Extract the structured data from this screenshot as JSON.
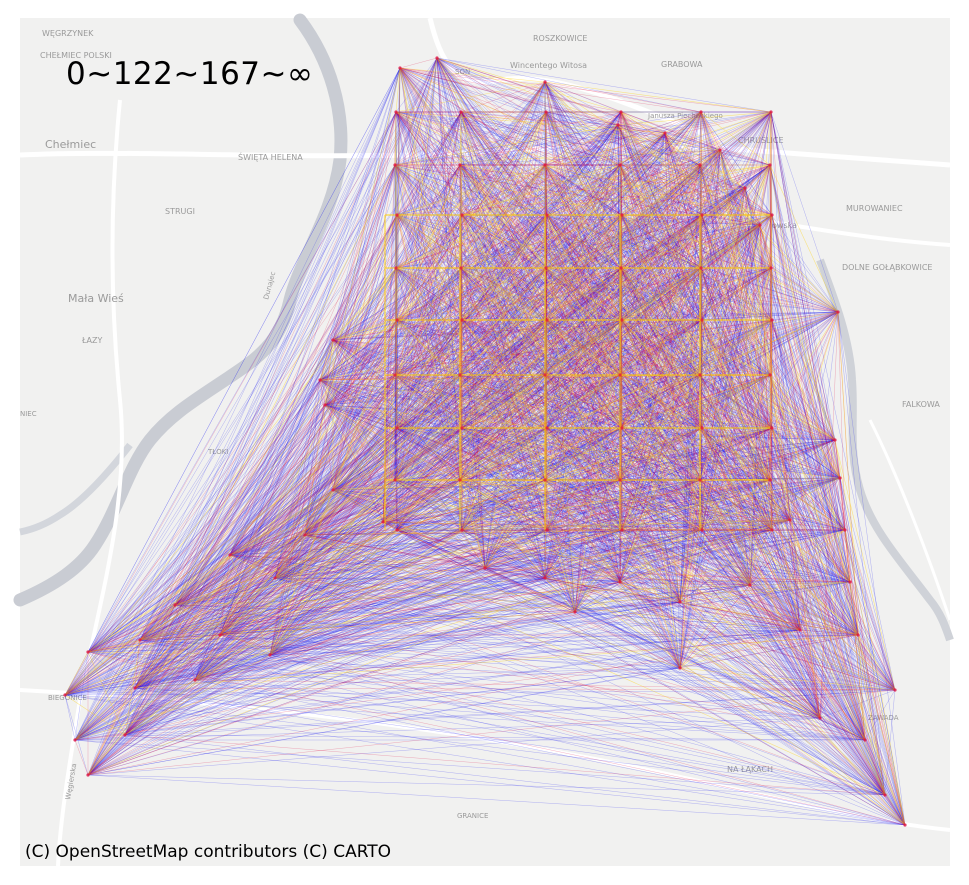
{
  "map": {
    "legend_text": "0~122~167~∞",
    "attribution": "(C) OpenStreetMap contributors (C) CARTO",
    "place_labels": [
      "WĘGRZYNEK",
      "CHEŁMIEC POLSKI",
      "Chełmiec",
      "ŚWIĘTA HELENA",
      "STRUGI",
      "Mała Wieś",
      "ŁAZY",
      "NIEC",
      "TŁOKI",
      "ROSZKOWICE",
      "GRABOWA",
      "CHRUŚLICE",
      "MUROWANIEC",
      "DOLNE GOŁĄBKOWICE",
      "FALKOWA",
      "BIEGONICE",
      "NA ŁĄKACH",
      "GRANICE",
      "ZAWADA",
      "SON",
      "Wincentego Witosa",
      "Janusza Piechockiego",
      "owska",
      "Dunajec",
      "Węgierska"
    ]
  },
  "colors": {
    "low_flow": "#2222ee",
    "mid_flow": "#dd1144",
    "high_flow": "#ffd000",
    "basemap": "#f2f2f1",
    "river": "#c9ccd3",
    "road": "#ffffff"
  }
}
